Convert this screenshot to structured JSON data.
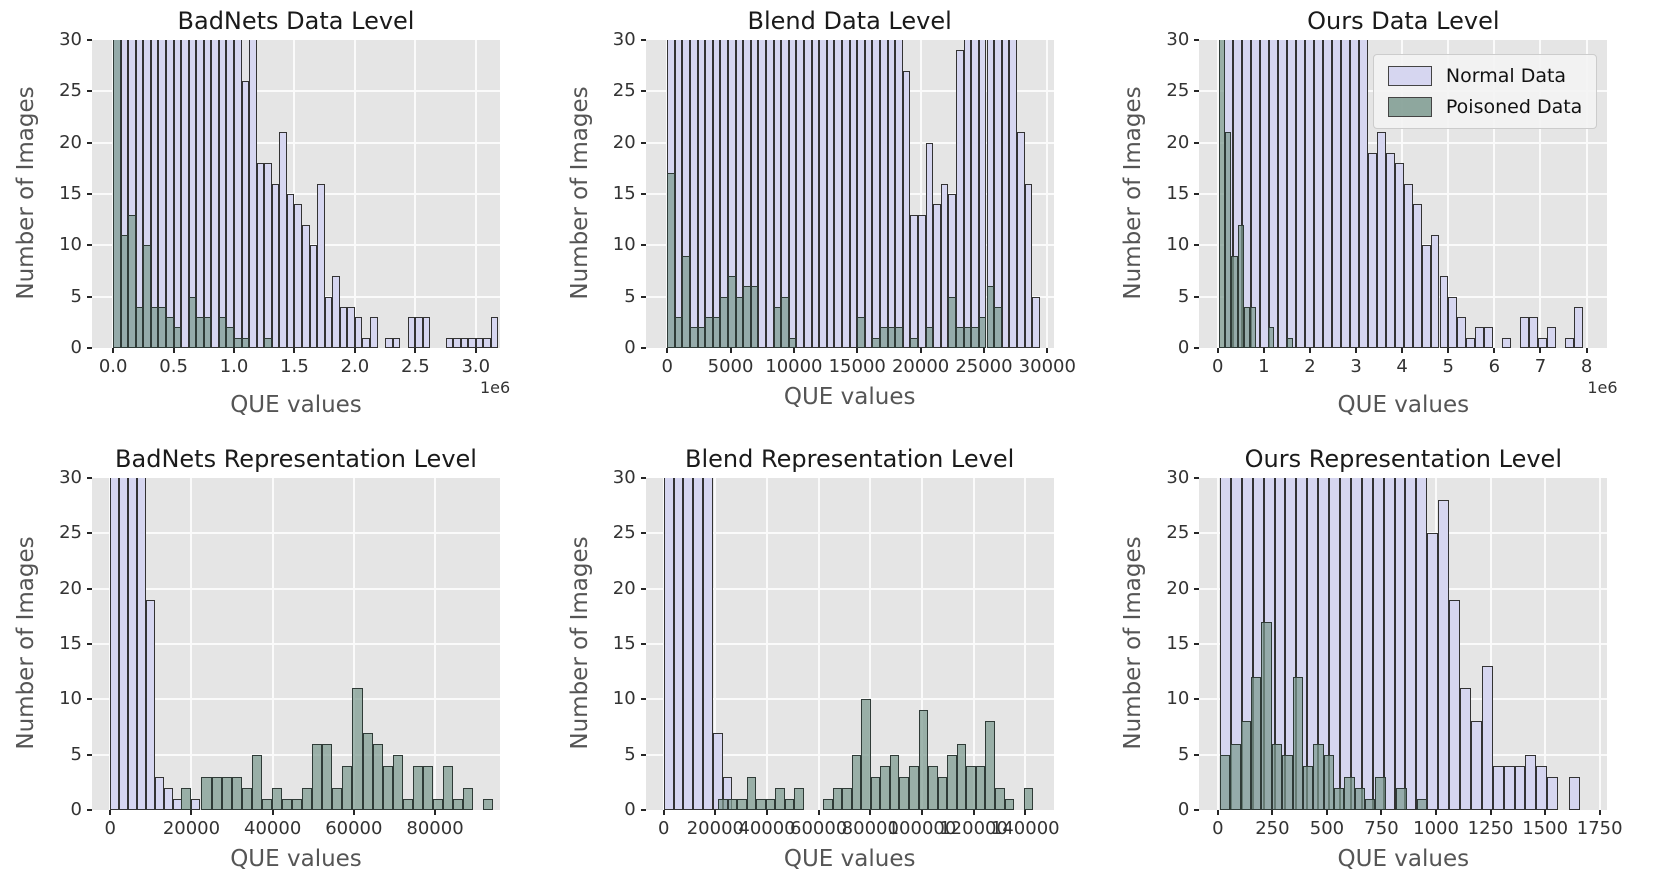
{
  "figure": {
    "background": "#ffffff",
    "plot_background": "#e5e5e5",
    "grid_color": "#fafafa",
    "colors": {
      "normal_fill": "#d6d6f0",
      "poisoned_fill": "rgba(124,154,143,0.72)",
      "bar_edge": "#333333",
      "poisoned_edge": "#2f3b37"
    },
    "xlabel": "QUE values",
    "ylabel": "Number of Images",
    "ylim": [
      0,
      30
    ],
    "yticks": [
      0,
      5,
      10,
      15,
      20,
      25,
      30
    ],
    "ytick_labels": [
      "0",
      "5",
      "10",
      "15",
      "20",
      "25",
      "30"
    ],
    "grid": true,
    "legend": {
      "position": "upper right of third subplot",
      "entries": [
        {
          "label": "Normal Data",
          "color_key": "normal"
        },
        {
          "label": "Poisoned Data",
          "color_key": "poisoned"
        }
      ]
    }
  },
  "chart_data": [
    {
      "type": "histogram",
      "title": "BadNets Data Level",
      "row": 0,
      "col": 0,
      "xlim": [
        -175000,
        3200000
      ],
      "xticks": [
        0,
        500000,
        1000000,
        1500000,
        2000000,
        2500000,
        3000000
      ],
      "xtick_labels": [
        "0.0",
        "0.5",
        "1.0",
        "1.5",
        "2.0",
        "2.5",
        "3.0"
      ],
      "x_offset_label": "1e6",
      "show_legend": false,
      "series": [
        {
          "name": "Normal Data",
          "color_key": "normal",
          "bin_start": 0,
          "bin_width": 62500,
          "counts": [
            30,
            30,
            30,
            30,
            30,
            30,
            30,
            30,
            30,
            30,
            30,
            30,
            30,
            30,
            30,
            30,
            30,
            26,
            30,
            18,
            18,
            16,
            21,
            15,
            14,
            12,
            10,
            16,
            5,
            7,
            4,
            4,
            3,
            1,
            3,
            0,
            1,
            1,
            0,
            3,
            3,
            3,
            0,
            0,
            1,
            1,
            1,
            1,
            1,
            1,
            3
          ]
        },
        {
          "name": "Poisoned Data",
          "color_key": "poisoned",
          "bin_start": 0,
          "bin_width": 62500,
          "counts": [
            30,
            11,
            13,
            4,
            10,
            4,
            4,
            3,
            2,
            0,
            5,
            3,
            3,
            0,
            3,
            2,
            1,
            1,
            0,
            0,
            1
          ]
        }
      ]
    },
    {
      "type": "histogram",
      "title": "Blend Data Level",
      "row": 0,
      "col": 1,
      "xlim": [
        -1700,
        30500
      ],
      "xticks": [
        0,
        5000,
        10000,
        15000,
        20000,
        25000,
        30000
      ],
      "xtick_labels": [
        "0",
        "5000",
        "10000",
        "15000",
        "20000",
        "25000",
        "30000"
      ],
      "x_offset_label": "",
      "show_legend": false,
      "series": [
        {
          "name": "Normal Data",
          "color_key": "normal",
          "bin_start": 0,
          "bin_width": 600,
          "counts": [
            30,
            30,
            30,
            30,
            30,
            30,
            30,
            30,
            30,
            30,
            30,
            30,
            30,
            30,
            30,
            30,
            30,
            30,
            30,
            30,
            30,
            30,
            30,
            30,
            30,
            30,
            30,
            30,
            30,
            30,
            30,
            27,
            13,
            13,
            20,
            14,
            16,
            15,
            29,
            30,
            30,
            30,
            30,
            30,
            30,
            30,
            21,
            16,
            5
          ]
        },
        {
          "name": "Poisoned Data",
          "color_key": "poisoned",
          "bin_start": 0,
          "bin_width": 600,
          "counts": [
            17,
            3,
            9,
            2,
            2,
            3,
            3,
            5,
            7,
            5,
            6,
            6,
            0,
            0,
            4,
            5,
            1,
            0,
            0,
            0,
            0,
            0,
            0,
            0,
            0,
            3,
            0,
            1,
            2,
            2,
            2,
            0,
            1,
            0,
            2,
            0,
            0,
            5,
            2,
            2,
            2,
            3,
            6,
            4
          ]
        }
      ]
    },
    {
      "type": "histogram",
      "title": "Ours Data Level",
      "row": 0,
      "col": 2,
      "xlim": [
        -400000,
        8450000
      ],
      "xticks": [
        0,
        1000000,
        2000000,
        3000000,
        4000000,
        5000000,
        6000000,
        7000000,
        8000000
      ],
      "xtick_labels": [
        "0",
        "1",
        "2",
        "3",
        "4",
        "5",
        "6",
        "7",
        "8"
      ],
      "x_offset_label": "1e6",
      "show_legend": true,
      "series": [
        {
          "name": "Normal Data",
          "color_key": "normal",
          "bin_start": 130000,
          "bin_width": 195000,
          "counts": [
            30,
            30,
            30,
            30,
            30,
            30,
            30,
            30,
            30,
            30,
            30,
            30,
            30,
            30,
            30,
            30,
            19,
            21,
            19,
            18,
            16,
            14,
            10,
            11,
            7,
            5,
            3,
            1,
            2,
            2,
            0,
            1,
            0,
            3,
            3,
            1,
            2,
            0,
            1,
            4
          ]
        },
        {
          "name": "Poisoned Data",
          "color_key": "poisoned",
          "bin_start": 30000,
          "bin_width": 133000,
          "counts": [
            30,
            21,
            9,
            12,
            4,
            4,
            0,
            0,
            2,
            0,
            0,
            1
          ]
        }
      ]
    },
    {
      "type": "histogram",
      "title": "BadNets Representation Level",
      "row": 1,
      "col": 0,
      "xlim": [
        -4500,
        96000
      ],
      "xticks": [
        0,
        20000,
        40000,
        60000,
        80000
      ],
      "xtick_labels": [
        "0",
        "20000",
        "40000",
        "60000",
        "80000"
      ],
      "x_offset_label": "",
      "show_legend": false,
      "series": [
        {
          "name": "Normal Data",
          "color_key": "normal",
          "bin_start": 0,
          "bin_width": 2200,
          "counts": [
            30,
            30,
            30,
            30,
            19,
            3,
            2,
            1,
            0,
            1
          ]
        },
        {
          "name": "Poisoned Data",
          "color_key": "poisoned",
          "bin_start": 17500,
          "bin_width": 2480,
          "counts": [
            2,
            0,
            3,
            3,
            3,
            3,
            2,
            5,
            1,
            2,
            1,
            1,
            2,
            6,
            6,
            2,
            4,
            11,
            7,
            6,
            4,
            5,
            1,
            4,
            4,
            1,
            4,
            1,
            2,
            0,
            1
          ]
        }
      ]
    },
    {
      "type": "histogram",
      "title": "Blend Representation Level",
      "row": 1,
      "col": 1,
      "xlim": [
        -7000,
        151000
      ],
      "xticks": [
        0,
        20000,
        40000,
        60000,
        80000,
        100000,
        120000,
        140000
      ],
      "xtick_labels": [
        "0",
        "20000",
        "40000",
        "60000",
        "80000",
        "100000",
        "120000",
        "140000"
      ],
      "x_offset_label": "",
      "show_legend": false,
      "series": [
        {
          "name": "Normal Data",
          "color_key": "normal",
          "bin_start": 0,
          "bin_width": 3800,
          "counts": [
            30,
            30,
            30,
            30,
            30,
            7,
            3
          ]
        },
        {
          "name": "Poisoned Data",
          "color_key": "poisoned",
          "bin_start": 21000,
          "bin_width": 3700,
          "counts": [
            1,
            1,
            1,
            3,
            1,
            1,
            2,
            1,
            2,
            0,
            0,
            1,
            2,
            2,
            5,
            10,
            3,
            4,
            5,
            3,
            4,
            9,
            4,
            3,
            5,
            6,
            4,
            4,
            8,
            2,
            1,
            0,
            2
          ]
        }
      ]
    },
    {
      "type": "histogram",
      "title": "Ours Representation Level",
      "row": 1,
      "col": 2,
      "xlim": [
        -85,
        1785
      ],
      "xticks": [
        0,
        250,
        500,
        750,
        1000,
        1250,
        1500,
        1750
      ],
      "xtick_labels": [
        "0",
        "250",
        "500",
        "750",
        "1000",
        "1250",
        "1500",
        "1750"
      ],
      "x_offset_label": "",
      "show_legend": false,
      "series": [
        {
          "name": "Normal Data",
          "color_key": "normal",
          "bin_start": 10,
          "bin_width": 50,
          "counts": [
            30,
            30,
            30,
            30,
            30,
            30,
            30,
            30,
            30,
            30,
            30,
            30,
            30,
            30,
            30,
            30,
            30,
            30,
            30,
            25,
            28,
            19,
            11,
            8,
            13,
            4,
            4,
            4,
            5,
            4,
            3,
            0,
            3
          ]
        },
        {
          "name": "Poisoned Data",
          "color_key": "poisoned",
          "bin_start": 10,
          "bin_width": 47.5,
          "counts": [
            5,
            6,
            8,
            12,
            17,
            6,
            5,
            12,
            4,
            6,
            5,
            2,
            3,
            2,
            1,
            3,
            0,
            2,
            0,
            1
          ]
        }
      ]
    }
  ]
}
